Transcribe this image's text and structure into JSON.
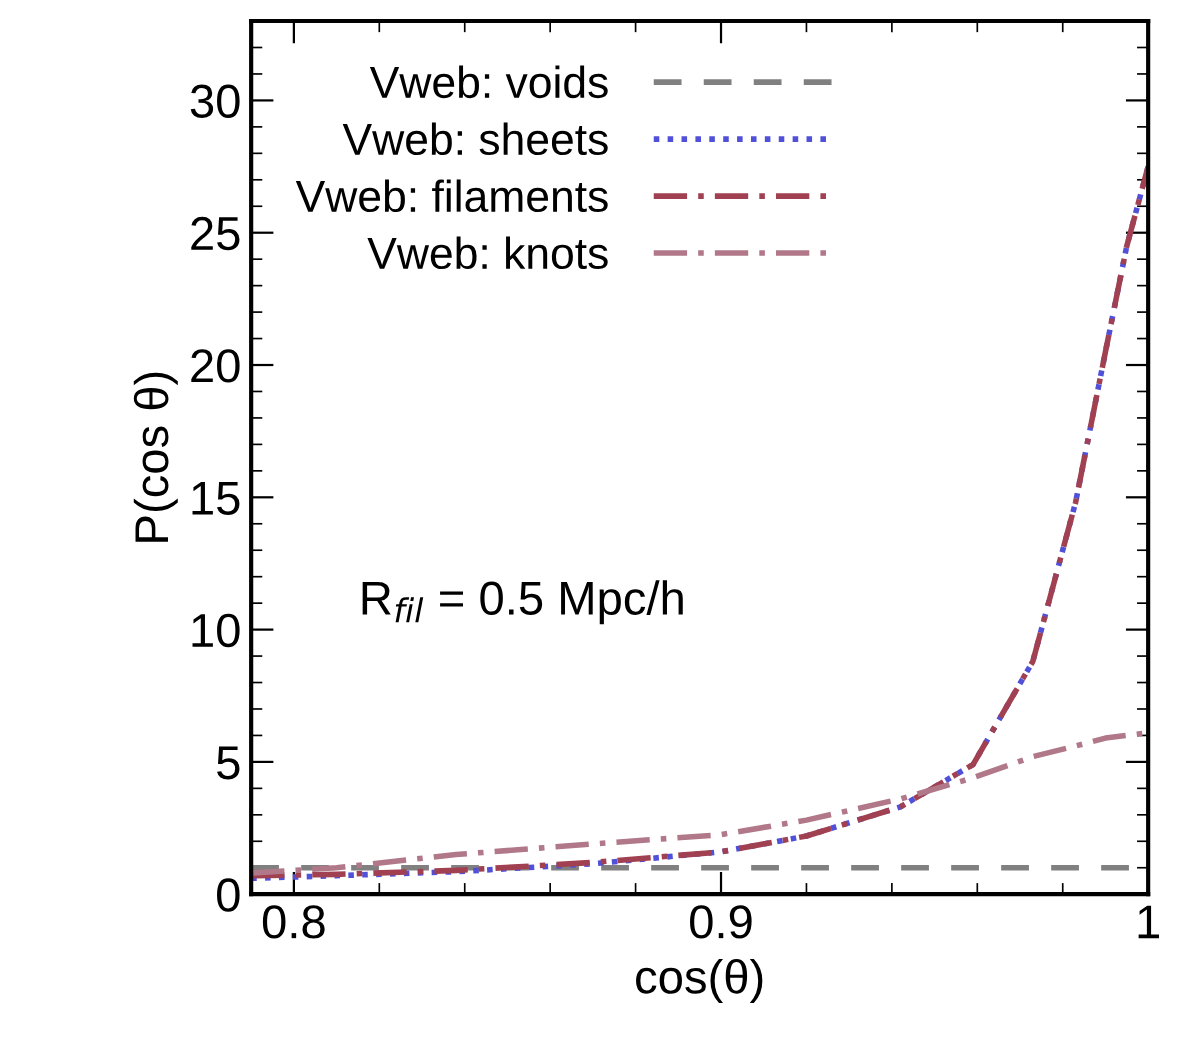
{
  "chart_data": {
    "type": "line",
    "xlabel": "cos(θ)",
    "ylabel": "P(cos θ)",
    "xlim": [
      0.79,
      1.0
    ],
    "ylim": [
      0,
      33
    ],
    "xticks": [
      0.8,
      0.9,
      {
        "value": 1.0,
        "label": "1"
      }
    ],
    "yticks": [
      0,
      5,
      10,
      15,
      20,
      25,
      30
    ],
    "grid": false,
    "legend": "top left",
    "marker": "none",
    "annotations": [
      "R$_{fil}$ = 0.5 Mpc/h"
    ],
    "x": [
      0.79,
      0.81,
      0.838,
      0.87,
      0.9,
      0.92,
      0.942,
      0.959,
      0.973,
      0.983,
      0.99,
      0.995,
      1.0
    ],
    "series": [
      {
        "name": "Vweb: voids",
        "color": "#808080",
        "line_style": "dashed",
        "values": [
          1.0,
          1.0,
          1.0,
          1.0,
          1.0,
          1.0,
          1.0,
          1.0,
          1.0,
          1.0,
          1.0,
          1.0,
          1.0
        ]
      },
      {
        "name": "Vweb: sheets",
        "color": "#5050d8",
        "line_style": "dotted",
        "values": [
          0.6,
          0.7,
          0.85,
          1.15,
          1.6,
          2.2,
          3.3,
          4.9,
          8.8,
          14.8,
          20.5,
          24.5,
          27.5
        ]
      },
      {
        "name": "Vweb: filaments",
        "color": "#a04050",
        "line_style": "dashdot",
        "values": [
          0.7,
          0.75,
          0.9,
          1.2,
          1.6,
          2.2,
          3.3,
          4.9,
          8.8,
          14.8,
          20.5,
          24.5,
          27.5
        ]
      },
      {
        "name": "Vweb: knots",
        "color": "#b07888",
        "line_style": "dashdot",
        "values": [
          0.8,
          1.0,
          1.5,
          1.9,
          2.25,
          2.8,
          3.6,
          4.4,
          5.2,
          5.6,
          5.9,
          6.0,
          6.1
        ]
      }
    ]
  }
}
